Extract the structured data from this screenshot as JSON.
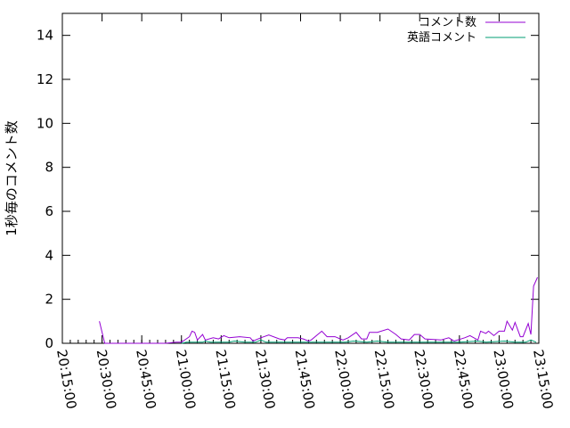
{
  "chart_data": {
    "type": "line",
    "title": "",
    "xlabel": "",
    "ylabel": "1秒毎のコメント数",
    "xlim": [
      "20:15:00",
      "23:15:00"
    ],
    "ylim": [
      0,
      15
    ],
    "grid": false,
    "legend_position": "top-right",
    "x_ticks": [
      "20:15:00",
      "20:30:00",
      "20:45:00",
      "21:00:00",
      "21:15:00",
      "21:30:00",
      "21:45:00",
      "22:00:00",
      "22:15:00",
      "22:30:00",
      "22:45:00",
      "23:00:00",
      "23:15:00"
    ],
    "y_ticks": [
      0,
      2,
      4,
      6,
      8,
      10,
      12,
      14
    ],
    "series": [
      {
        "name": "コメント数",
        "color": "#9400d3",
        "points": [
          [
            "20:29:00",
            1.0
          ],
          [
            "20:31:00",
            0
          ],
          [
            "20:54:00",
            0
          ],
          [
            "20:58:00",
            0.05
          ],
          [
            "21:00:00",
            0.05
          ],
          [
            "21:03:00",
            0.3
          ],
          [
            "21:04:00",
            0.55
          ],
          [
            "21:05:00",
            0.5
          ],
          [
            "21:06:00",
            0.15
          ],
          [
            "21:08:00",
            0.4
          ],
          [
            "21:09:00",
            0.15
          ],
          [
            "21:12:00",
            0.25
          ],
          [
            "21:14:00",
            0.2
          ],
          [
            "21:16:00",
            0.35
          ],
          [
            "21:18:00",
            0.25
          ],
          [
            "21:22:00",
            0.3
          ],
          [
            "21:26:00",
            0.25
          ],
          [
            "21:27:00",
            0.1
          ],
          [
            "21:30:00",
            0.25
          ],
          [
            "21:33:00",
            0.38
          ],
          [
            "21:37:00",
            0.2
          ],
          [
            "21:39:00",
            0.15
          ],
          [
            "21:40:00",
            0.25
          ],
          [
            "21:44:00",
            0.25
          ],
          [
            "21:46:00",
            0.2
          ],
          [
            "21:48:00",
            0.1
          ],
          [
            "21:49:00",
            0.15
          ],
          [
            "21:52:00",
            0.45
          ],
          [
            "21:53:00",
            0.55
          ],
          [
            "21:55:00",
            0.3
          ],
          [
            "21:58:00",
            0.3
          ],
          [
            "22:01:00",
            0.15
          ],
          [
            "22:03:00",
            0.25
          ],
          [
            "22:06:00",
            0.5
          ],
          [
            "22:08:00",
            0.2
          ],
          [
            "22:10:00",
            0.2
          ],
          [
            "22:11:00",
            0.5
          ],
          [
            "22:14:00",
            0.5
          ],
          [
            "22:18:00",
            0.65
          ],
          [
            "22:21:00",
            0.4
          ],
          [
            "22:23:00",
            0.2
          ],
          [
            "22:26:00",
            0.15
          ],
          [
            "22:28:00",
            0.4
          ],
          [
            "22:30:00",
            0.4
          ],
          [
            "22:32:00",
            0.2
          ],
          [
            "22:38:00",
            0.15
          ],
          [
            "22:41:00",
            0.25
          ],
          [
            "22:43:00",
            0.1
          ],
          [
            "22:47:00",
            0.25
          ],
          [
            "22:49:00",
            0.35
          ],
          [
            "22:52:00",
            0.15
          ],
          [
            "22:53:00",
            0.55
          ],
          [
            "22:55:00",
            0.45
          ],
          [
            "22:56:00",
            0.55
          ],
          [
            "22:58:00",
            0.35
          ],
          [
            "23:00:00",
            0.55
          ],
          [
            "23:02:00",
            0.55
          ],
          [
            "23:03:00",
            1.0
          ],
          [
            "23:05:00",
            0.6
          ],
          [
            "23:06:00",
            0.95
          ],
          [
            "23:08:00",
            0.3
          ],
          [
            "23:09:00",
            0.3
          ],
          [
            "23:11:00",
            0.9
          ],
          [
            "23:12:00",
            0.4
          ],
          [
            "23:13:00",
            2.6
          ],
          [
            "23:14:30",
            3.0
          ]
        ]
      },
      {
        "name": "英語コメント",
        "color": "#009e73",
        "points": [
          [
            "21:00:00",
            0
          ],
          [
            "21:02:00",
            0.05
          ],
          [
            "21:08:00",
            0.05
          ],
          [
            "21:09:00",
            0.1
          ],
          [
            "21:11:00",
            0.05
          ],
          [
            "21:18:00",
            0.05
          ],
          [
            "21:20:00",
            0.1
          ],
          [
            "21:24:00",
            0.05
          ],
          [
            "21:28:00",
            0.05
          ],
          [
            "21:30:00",
            0.15
          ],
          [
            "21:32:00",
            0.05
          ],
          [
            "21:45:00",
            0.05
          ],
          [
            "21:55:00",
            0.05
          ],
          [
            "22:02:00",
            0.05
          ],
          [
            "22:05:00",
            0.1
          ],
          [
            "22:10:00",
            0.05
          ],
          [
            "22:14:00",
            0.1
          ],
          [
            "22:18:00",
            0.05
          ],
          [
            "22:30:00",
            0.05
          ],
          [
            "22:45:00",
            0.05
          ],
          [
            "22:52:00",
            0.1
          ],
          [
            "22:55:00",
            0.05
          ],
          [
            "23:02:00",
            0.1
          ],
          [
            "23:06:00",
            0.05
          ],
          [
            "23:10:00",
            0.05
          ],
          [
            "23:12:00",
            0.15
          ],
          [
            "23:14:00",
            0.05
          ]
        ]
      }
    ]
  }
}
